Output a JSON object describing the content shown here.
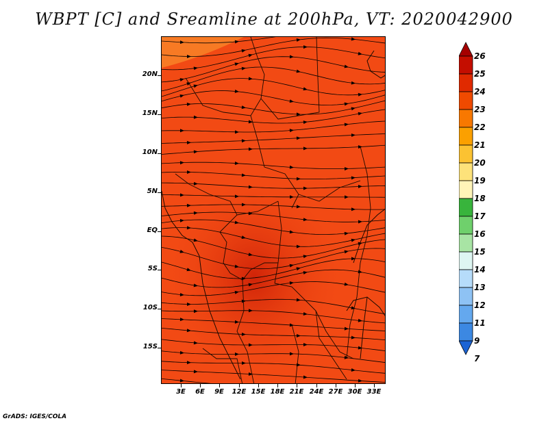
{
  "title": "WBPT [C] and Sreamline at 200hPa, VT: 2020042900",
  "footer": "GrADS: IGES/COLA",
  "map": {
    "lat_labels": [
      "20N",
      "15N",
      "10N",
      "5N",
      "EQ",
      "5S",
      "10S",
      "15S"
    ],
    "lon_labels": [
      "3E",
      "6E",
      "9E",
      "12E",
      "15E",
      "18E",
      "21E",
      "24E",
      "27E",
      "30E",
      "33E"
    ],
    "background_color": "#f24a14",
    "hot_color": "#d92a0e",
    "warm_color": "#f77a24"
  },
  "colorbar": {
    "labels": [
      "26",
      "25",
      "24",
      "23",
      "22",
      "21",
      "20",
      "19",
      "18",
      "17",
      "16",
      "15",
      "14",
      "13",
      "12",
      "11",
      "9",
      "7"
    ],
    "colors": [
      "#a50000",
      "#c40e00",
      "#e02a00",
      "#f04a00",
      "#f87800",
      "#fba000",
      "#fbc232",
      "#fde27a",
      "#fff4b8",
      "#38b43c",
      "#6fd06c",
      "#a8e4a4",
      "#def6f2",
      "#b6dcfa",
      "#8ec2f4",
      "#64a8ee",
      "#3c88e2",
      "#1c64d4"
    ]
  }
}
